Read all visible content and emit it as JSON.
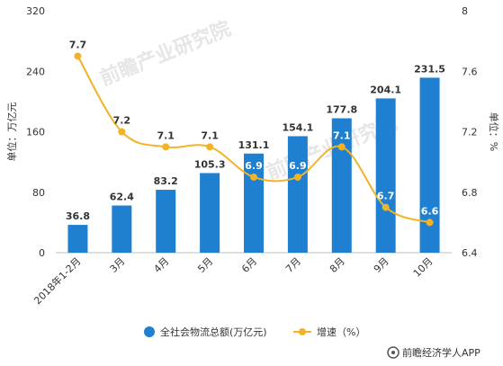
{
  "chart_data": {
    "type": "bar",
    "categories": [
      "2018年1-2月",
      "3月",
      "4月",
      "5月",
      "6月",
      "7月",
      "8月",
      "9月",
      "10月"
    ],
    "series": [
      {
        "name": "全社会物流总额(万亿元)",
        "type": "bar",
        "axis": "left",
        "color": "#1f7fd0",
        "values": [
          36.8,
          62.4,
          83.2,
          105.3,
          131.1,
          154.1,
          177.8,
          204.1,
          231.5
        ]
      },
      {
        "name": "增速（%）",
        "type": "line",
        "axis": "right",
        "color": "#f2b426",
        "values": [
          7.7,
          7.2,
          7.1,
          7.1,
          6.9,
          6.9,
          7.1,
          6.7,
          6.6
        ]
      }
    ],
    "ylabel": "单位：万亿元",
    "y2label": "单位：%",
    "ylim": [
      0,
      320
    ],
    "yticks": [
      "0",
      "80",
      "160",
      "240",
      "320"
    ],
    "y2lim": [
      6.4,
      8
    ],
    "y2ticks": [
      "6.4",
      "6.8",
      "7.2",
      "7.6",
      "8"
    ],
    "grid": false,
    "legend_position": "bottom"
  },
  "credit": "前瞻经济学人APP",
  "watermark": "前瞻产业研究院"
}
